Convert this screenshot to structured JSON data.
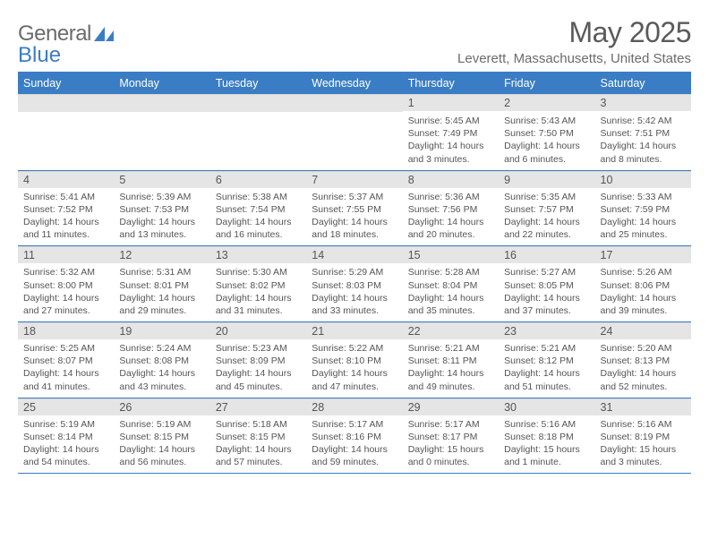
{
  "logo": {
    "word1": "General",
    "word2": "Blue"
  },
  "title": "May 2025",
  "location": "Leverett, Massachusetts, United States",
  "colors": {
    "header_bg": "#3b7dc4",
    "header_text": "#ffffff",
    "daynum_bg": "#e5e5e5",
    "text": "#555555",
    "rule": "#3b7dc4",
    "page_bg": "#ffffff",
    "logo_gray": "#6b6b6b",
    "logo_blue": "#3b7dc4"
  },
  "typography": {
    "title_fontsize": 32,
    "location_fontsize": 15,
    "dayheader_fontsize": 12.5,
    "daynum_fontsize": 12.5,
    "info_fontsize": 10.5,
    "font_family": "Arial"
  },
  "day_names": [
    "Sunday",
    "Monday",
    "Tuesday",
    "Wednesday",
    "Thursday",
    "Friday",
    "Saturday"
  ],
  "weeks": [
    [
      null,
      null,
      null,
      null,
      {
        "n": "1",
        "sr": "Sunrise: 5:45 AM",
        "ss": "Sunset: 7:49 PM",
        "d1": "Daylight: 14 hours",
        "d2": "and 3 minutes."
      },
      {
        "n": "2",
        "sr": "Sunrise: 5:43 AM",
        "ss": "Sunset: 7:50 PM",
        "d1": "Daylight: 14 hours",
        "d2": "and 6 minutes."
      },
      {
        "n": "3",
        "sr": "Sunrise: 5:42 AM",
        "ss": "Sunset: 7:51 PM",
        "d1": "Daylight: 14 hours",
        "d2": "and 8 minutes."
      }
    ],
    [
      {
        "n": "4",
        "sr": "Sunrise: 5:41 AM",
        "ss": "Sunset: 7:52 PM",
        "d1": "Daylight: 14 hours",
        "d2": "and 11 minutes."
      },
      {
        "n": "5",
        "sr": "Sunrise: 5:39 AM",
        "ss": "Sunset: 7:53 PM",
        "d1": "Daylight: 14 hours",
        "d2": "and 13 minutes."
      },
      {
        "n": "6",
        "sr": "Sunrise: 5:38 AM",
        "ss": "Sunset: 7:54 PM",
        "d1": "Daylight: 14 hours",
        "d2": "and 16 minutes."
      },
      {
        "n": "7",
        "sr": "Sunrise: 5:37 AM",
        "ss": "Sunset: 7:55 PM",
        "d1": "Daylight: 14 hours",
        "d2": "and 18 minutes."
      },
      {
        "n": "8",
        "sr": "Sunrise: 5:36 AM",
        "ss": "Sunset: 7:56 PM",
        "d1": "Daylight: 14 hours",
        "d2": "and 20 minutes."
      },
      {
        "n": "9",
        "sr": "Sunrise: 5:35 AM",
        "ss": "Sunset: 7:57 PM",
        "d1": "Daylight: 14 hours",
        "d2": "and 22 minutes."
      },
      {
        "n": "10",
        "sr": "Sunrise: 5:33 AM",
        "ss": "Sunset: 7:59 PM",
        "d1": "Daylight: 14 hours",
        "d2": "and 25 minutes."
      }
    ],
    [
      {
        "n": "11",
        "sr": "Sunrise: 5:32 AM",
        "ss": "Sunset: 8:00 PM",
        "d1": "Daylight: 14 hours",
        "d2": "and 27 minutes."
      },
      {
        "n": "12",
        "sr": "Sunrise: 5:31 AM",
        "ss": "Sunset: 8:01 PM",
        "d1": "Daylight: 14 hours",
        "d2": "and 29 minutes."
      },
      {
        "n": "13",
        "sr": "Sunrise: 5:30 AM",
        "ss": "Sunset: 8:02 PM",
        "d1": "Daylight: 14 hours",
        "d2": "and 31 minutes."
      },
      {
        "n": "14",
        "sr": "Sunrise: 5:29 AM",
        "ss": "Sunset: 8:03 PM",
        "d1": "Daylight: 14 hours",
        "d2": "and 33 minutes."
      },
      {
        "n": "15",
        "sr": "Sunrise: 5:28 AM",
        "ss": "Sunset: 8:04 PM",
        "d1": "Daylight: 14 hours",
        "d2": "and 35 minutes."
      },
      {
        "n": "16",
        "sr": "Sunrise: 5:27 AM",
        "ss": "Sunset: 8:05 PM",
        "d1": "Daylight: 14 hours",
        "d2": "and 37 minutes."
      },
      {
        "n": "17",
        "sr": "Sunrise: 5:26 AM",
        "ss": "Sunset: 8:06 PM",
        "d1": "Daylight: 14 hours",
        "d2": "and 39 minutes."
      }
    ],
    [
      {
        "n": "18",
        "sr": "Sunrise: 5:25 AM",
        "ss": "Sunset: 8:07 PM",
        "d1": "Daylight: 14 hours",
        "d2": "and 41 minutes."
      },
      {
        "n": "19",
        "sr": "Sunrise: 5:24 AM",
        "ss": "Sunset: 8:08 PM",
        "d1": "Daylight: 14 hours",
        "d2": "and 43 minutes."
      },
      {
        "n": "20",
        "sr": "Sunrise: 5:23 AM",
        "ss": "Sunset: 8:09 PM",
        "d1": "Daylight: 14 hours",
        "d2": "and 45 minutes."
      },
      {
        "n": "21",
        "sr": "Sunrise: 5:22 AM",
        "ss": "Sunset: 8:10 PM",
        "d1": "Daylight: 14 hours",
        "d2": "and 47 minutes."
      },
      {
        "n": "22",
        "sr": "Sunrise: 5:21 AM",
        "ss": "Sunset: 8:11 PM",
        "d1": "Daylight: 14 hours",
        "d2": "and 49 minutes."
      },
      {
        "n": "23",
        "sr": "Sunrise: 5:21 AM",
        "ss": "Sunset: 8:12 PM",
        "d1": "Daylight: 14 hours",
        "d2": "and 51 minutes."
      },
      {
        "n": "24",
        "sr": "Sunrise: 5:20 AM",
        "ss": "Sunset: 8:13 PM",
        "d1": "Daylight: 14 hours",
        "d2": "and 52 minutes."
      }
    ],
    [
      {
        "n": "25",
        "sr": "Sunrise: 5:19 AM",
        "ss": "Sunset: 8:14 PM",
        "d1": "Daylight: 14 hours",
        "d2": "and 54 minutes."
      },
      {
        "n": "26",
        "sr": "Sunrise: 5:19 AM",
        "ss": "Sunset: 8:15 PM",
        "d1": "Daylight: 14 hours",
        "d2": "and 56 minutes."
      },
      {
        "n": "27",
        "sr": "Sunrise: 5:18 AM",
        "ss": "Sunset: 8:15 PM",
        "d1": "Daylight: 14 hours",
        "d2": "and 57 minutes."
      },
      {
        "n": "28",
        "sr": "Sunrise: 5:17 AM",
        "ss": "Sunset: 8:16 PM",
        "d1": "Daylight: 14 hours",
        "d2": "and 59 minutes."
      },
      {
        "n": "29",
        "sr": "Sunrise: 5:17 AM",
        "ss": "Sunset: 8:17 PM",
        "d1": "Daylight: 15 hours",
        "d2": "and 0 minutes."
      },
      {
        "n": "30",
        "sr": "Sunrise: 5:16 AM",
        "ss": "Sunset: 8:18 PM",
        "d1": "Daylight: 15 hours",
        "d2": "and 1 minute."
      },
      {
        "n": "31",
        "sr": "Sunrise: 5:16 AM",
        "ss": "Sunset: 8:19 PM",
        "d1": "Daylight: 15 hours",
        "d2": "and 3 minutes."
      }
    ]
  ]
}
